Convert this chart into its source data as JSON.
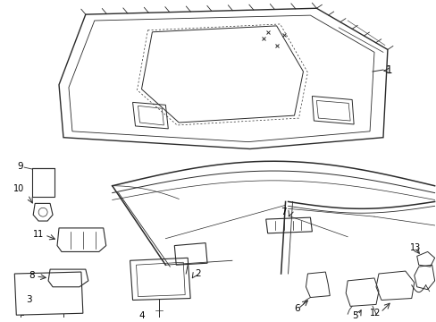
{
  "background_color": "#ffffff",
  "fig_width": 4.89,
  "fig_height": 3.6,
  "dpi": 100,
  "line_color": "#2a2a2a",
  "label_fontsize": 7.5
}
